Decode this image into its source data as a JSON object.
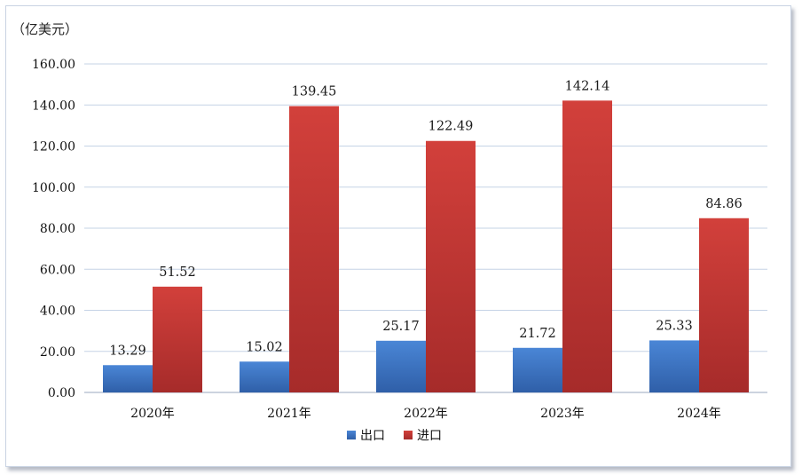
{
  "chart_data": {
    "type": "bar",
    "unit_label": "（亿美元）",
    "categories": [
      "2020年",
      "2021年",
      "2022年",
      "2023年",
      "2024年"
    ],
    "series": [
      {
        "name": "出口",
        "values": [
          13.29,
          15.02,
          25.17,
          21.72,
          25.33
        ],
        "color": "#3b73c4"
      },
      {
        "name": "进口",
        "values": [
          51.52,
          139.45,
          122.49,
          142.14,
          84.86
        ],
        "color": "#c23a36"
      }
    ],
    "ylim": [
      0,
      160
    ],
    "yticks": [
      "0.00",
      "20.00",
      "40.00",
      "60.00",
      "80.00",
      "100.00",
      "120.00",
      "140.00",
      "160.00"
    ],
    "data_labels": [
      [
        "13.29",
        "15.02",
        "25.17",
        "21.72",
        "25.33"
      ],
      [
        "51.52",
        "139.45",
        "122.49",
        "142.14",
        "84.86"
      ]
    ],
    "grid": true,
    "legend_position": "bottom"
  }
}
